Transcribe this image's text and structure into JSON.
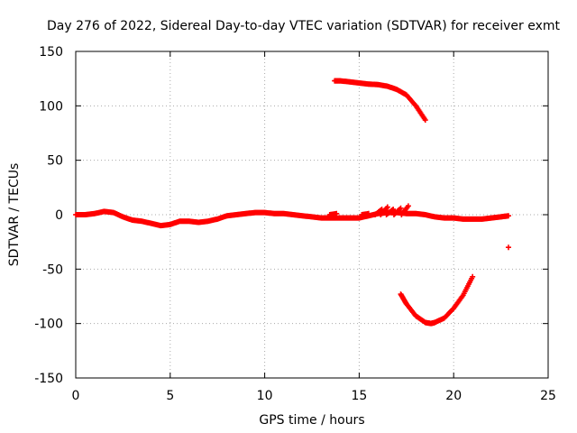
{
  "chart_data": {
    "type": "scatter",
    "title": "Day 276 of 2022, Sidereal Day-to-day VTEC variation (SDTVAR) for receiver exmt",
    "xlabel": "GPS time / hours",
    "ylabel": "SDTVAR / TECUs",
    "xlim": [
      0,
      25
    ],
    "ylim": [
      -150,
      150
    ],
    "xticks": [
      0,
      5,
      10,
      15,
      20,
      25
    ],
    "yticks": [
      -150,
      -100,
      -50,
      0,
      50,
      100,
      150
    ],
    "grid": true,
    "marker": "+",
    "color": "#ff0000",
    "series": [
      {
        "name": "main trace",
        "points": [
          [
            0.0,
            0
          ],
          [
            0.5,
            0
          ],
          [
            1.0,
            1
          ],
          [
            1.5,
            3
          ],
          [
            2.0,
            2
          ],
          [
            2.5,
            -2
          ],
          [
            3.0,
            -5
          ],
          [
            3.5,
            -6
          ],
          [
            4.0,
            -8
          ],
          [
            4.5,
            -10
          ],
          [
            5.0,
            -9
          ],
          [
            5.5,
            -6
          ],
          [
            6.0,
            -6
          ],
          [
            6.5,
            -7
          ],
          [
            7.0,
            -6
          ],
          [
            7.5,
            -4
          ],
          [
            8.0,
            -1
          ],
          [
            8.5,
            0
          ],
          [
            9.0,
            1
          ],
          [
            9.5,
            2
          ],
          [
            10.0,
            2
          ],
          [
            10.5,
            1
          ],
          [
            11.0,
            1
          ],
          [
            11.5,
            0
          ],
          [
            12.0,
            -1
          ],
          [
            12.5,
            -2
          ],
          [
            13.0,
            -3
          ],
          [
            13.5,
            -3
          ],
          [
            14.0,
            -3
          ],
          [
            14.5,
            -3
          ],
          [
            15.0,
            -3
          ],
          [
            15.5,
            -1
          ],
          [
            16.0,
            1
          ],
          [
            16.5,
            2
          ],
          [
            17.0,
            2
          ],
          [
            17.5,
            1
          ],
          [
            18.0,
            1
          ],
          [
            18.5,
            0
          ],
          [
            19.0,
            -2
          ],
          [
            19.5,
            -3
          ],
          [
            20.0,
            -3
          ],
          [
            20.5,
            -4
          ],
          [
            21.0,
            -4
          ],
          [
            21.5,
            -4
          ],
          [
            22.0,
            -3
          ],
          [
            22.5,
            -2
          ],
          [
            22.9,
            -1
          ]
        ]
      },
      {
        "name": "upper arc",
        "points": [
          [
            13.7,
            123
          ],
          [
            14.0,
            123
          ],
          [
            14.5,
            122
          ],
          [
            15.0,
            121
          ],
          [
            15.5,
            120
          ],
          [
            16.0,
            119.5
          ],
          [
            16.5,
            118
          ],
          [
            17.0,
            115
          ],
          [
            17.5,
            110
          ],
          [
            18.0,
            100
          ],
          [
            18.5,
            87
          ]
        ]
      },
      {
        "name": "lower arc",
        "points": [
          [
            17.2,
            -73
          ],
          [
            17.5,
            -82
          ],
          [
            18.0,
            -93
          ],
          [
            18.5,
            -99
          ],
          [
            18.8,
            -100
          ],
          [
            19.0,
            -99
          ],
          [
            19.5,
            -95
          ],
          [
            20.0,
            -86
          ],
          [
            20.5,
            -74
          ],
          [
            21.0,
            -57
          ]
        ]
      },
      {
        "name": "spikes",
        "points": [
          [
            13.8,
            1
          ],
          [
            15.5,
            1
          ],
          [
            16.2,
            5
          ],
          [
            16.5,
            7
          ],
          [
            16.8,
            5
          ],
          [
            17.2,
            6
          ],
          [
            17.6,
            8
          ]
        ]
      },
      {
        "name": "outlier",
        "points": [
          [
            22.9,
            -30
          ]
        ]
      }
    ]
  }
}
